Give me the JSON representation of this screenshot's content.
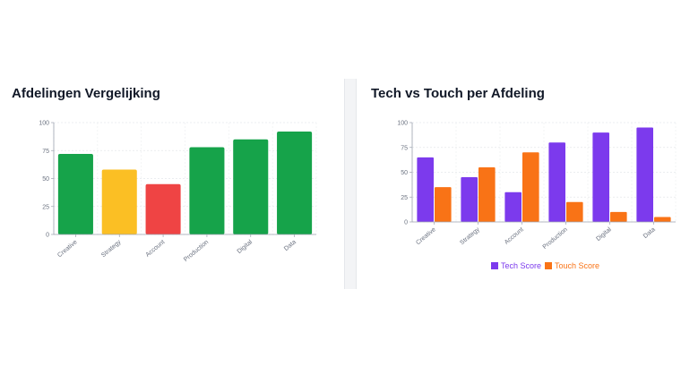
{
  "left_panel": {
    "title": "Afdelingen Vergelijking"
  },
  "right_panel": {
    "title": "Tech vs Touch per Afdeling"
  },
  "chart_data": [
    {
      "type": "bar",
      "title": "Afdelingen Vergelijking",
      "categories": [
        "Creative",
        "Strategy",
        "Account",
        "Production",
        "Digital",
        "Data"
      ],
      "values": [
        72,
        58,
        45,
        78,
        85,
        92
      ],
      "colors": [
        "#16a34a",
        "#fbbf24",
        "#ef4444",
        "#16a34a",
        "#16a34a",
        "#16a34a"
      ],
      "ylim": [
        0,
        100
      ],
      "yticks": [
        "0",
        "25",
        "50",
        "75",
        "100"
      ],
      "grid": true
    },
    {
      "type": "bar",
      "title": "Tech vs Touch per Afdeling",
      "categories": [
        "Creative",
        "Strategy",
        "Account",
        "Production",
        "Digital",
        "Data"
      ],
      "series": [
        {
          "name": "Tech Score",
          "values": [
            65,
            45,
            30,
            80,
            90,
            95
          ],
          "color": "#7c3aed"
        },
        {
          "name": "Touch Score",
          "values": [
            35,
            55,
            70,
            20,
            10,
            5
          ],
          "color": "#f97316"
        }
      ],
      "ylim": [
        0,
        100
      ],
      "yticks": [
        "0",
        "25",
        "50",
        "75",
        "100"
      ],
      "grid": true,
      "legend": "bottom"
    }
  ]
}
